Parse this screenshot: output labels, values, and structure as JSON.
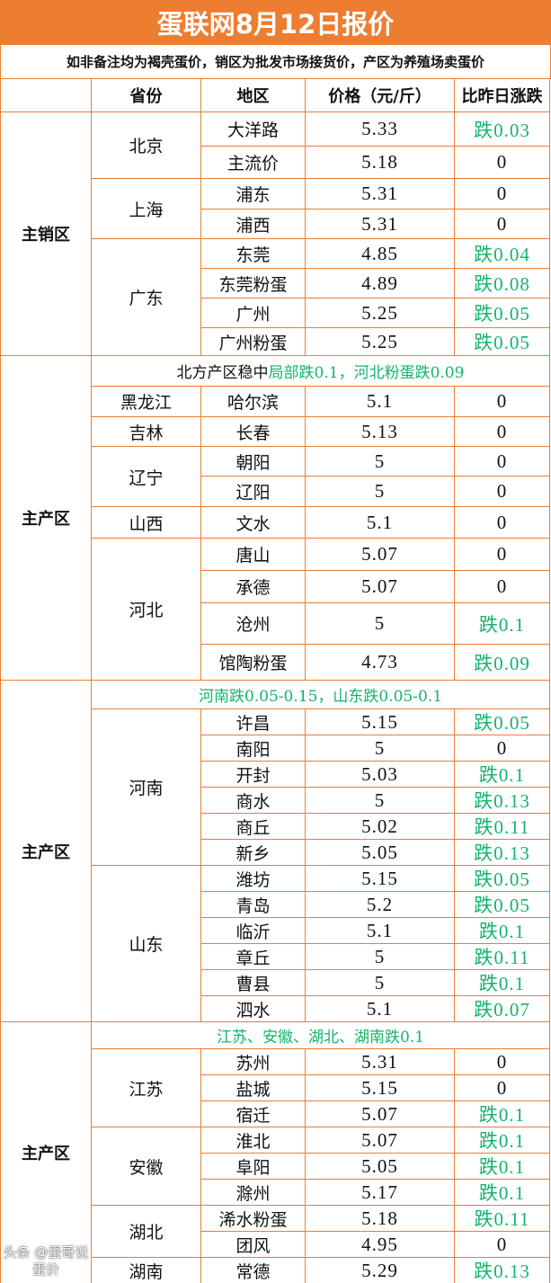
{
  "title": "蛋联网8月12日报价",
  "subtitle": "如非备注均为褐壳蛋价，销区为批发市场接货价，产区为养殖场卖蛋价",
  "headers": {
    "region": "",
    "province": "省份",
    "district": "地区",
    "price": "价格（元/斤）",
    "change": "比昨日涨跌"
  },
  "colors": {
    "brand": "#ed7d31",
    "down": "#14b36b",
    "border": "#ed7d31"
  },
  "sections": [
    {
      "region": "主销区",
      "note": null,
      "provinces": [
        {
          "name": "北京",
          "rows": [
            {
              "district": "大洋路",
              "price": "5.33",
              "change": "跌0.03"
            },
            {
              "district": "主流价",
              "price": "5.18",
              "change": "0"
            }
          ]
        },
        {
          "name": "上海",
          "rows": [
            {
              "district": "浦东",
              "price": "5.31",
              "change": "0"
            },
            {
              "district": "浦西",
              "price": "5.31",
              "change": "0"
            }
          ]
        },
        {
          "name": "广东",
          "rows": [
            {
              "district": "东莞",
              "price": "4.85",
              "change": "跌0.04"
            },
            {
              "district": "东莞粉蛋",
              "price": "4.89",
              "change": "跌0.08"
            },
            {
              "district": "广州",
              "price": "5.25",
              "change": "跌0.05"
            },
            {
              "district": "广州粉蛋",
              "price": "5.25",
              "change": "跌0.05"
            }
          ]
        }
      ]
    },
    {
      "region": "主产区",
      "note": [
        {
          "text": "北方产区稳中",
          "green": false
        },
        {
          "text": "局部跌0.1，河北粉蛋跌0.09",
          "green": true
        }
      ],
      "provinces": [
        {
          "name": "黑龙江",
          "rows": [
            {
              "district": "哈尔滨",
              "price": "5.1",
              "change": "0"
            }
          ]
        },
        {
          "name": "吉林",
          "rows": [
            {
              "district": "长春",
              "price": "5.13",
              "change": "0"
            }
          ]
        },
        {
          "name": "辽宁",
          "rows": [
            {
              "district": "朝阳",
              "price": "5",
              "change": "0"
            },
            {
              "district": "辽阳",
              "price": "5",
              "change": "0"
            }
          ]
        },
        {
          "name": "山西",
          "rows": [
            {
              "district": "文水",
              "price": "5.1",
              "change": "0"
            }
          ]
        },
        {
          "name": "河北",
          "rows": [
            {
              "district": "唐山",
              "price": "5.07",
              "change": "0"
            },
            {
              "district": "承德",
              "price": "5.07",
              "change": "0"
            },
            {
              "district": "沧州",
              "price": "5",
              "change": "跌0.1"
            },
            {
              "district": "馆陶粉蛋",
              "price": "4.73",
              "change": "跌0.09"
            }
          ]
        }
      ]
    },
    {
      "region": "主产区",
      "note": [
        {
          "text": "河南跌0.05-0.15，山东跌0.05-0.1",
          "green": true
        }
      ],
      "provinces": [
        {
          "name": "河南",
          "rows": [
            {
              "district": "许昌",
              "price": "5.15",
              "change": "跌0.05"
            },
            {
              "district": "南阳",
              "price": "5",
              "change": "0"
            },
            {
              "district": "开封",
              "price": "5.03",
              "change": "跌0.1"
            },
            {
              "district": "商水",
              "price": "5",
              "change": "跌0.13"
            },
            {
              "district": "商丘",
              "price": "5.02",
              "change": "跌0.11"
            },
            {
              "district": "新乡",
              "price": "5.05",
              "change": "跌0.13"
            }
          ]
        },
        {
          "name": "山东",
          "rows": [
            {
              "district": "潍坊",
              "price": "5.15",
              "change": "跌0.05"
            },
            {
              "district": "青岛",
              "price": "5.2",
              "change": "跌0.05"
            },
            {
              "district": "临沂",
              "price": "5.1",
              "change": "跌0.1"
            },
            {
              "district": "章丘",
              "price": "5",
              "change": "跌0.11"
            },
            {
              "district": "曹县",
              "price": "5",
              "change": "跌0.1"
            },
            {
              "district": "泗水",
              "price": "5.1",
              "change": "跌0.07"
            }
          ]
        }
      ]
    },
    {
      "region": "主产区",
      "note": [
        {
          "text": "江苏、安徽、湖北、湖南跌0.1",
          "green": true
        }
      ],
      "provinces": [
        {
          "name": "江苏",
          "rows": [
            {
              "district": "苏州",
              "price": "5.31",
              "change": "0"
            },
            {
              "district": "盐城",
              "price": "5.15",
              "change": "0"
            },
            {
              "district": "宿迁",
              "price": "5.07",
              "change": "跌0.1"
            }
          ]
        },
        {
          "name": "安徽",
          "rows": [
            {
              "district": "淮北",
              "price": "5.07",
              "change": "跌0.1"
            },
            {
              "district": "阜阳",
              "price": "5.05",
              "change": "跌0.1"
            },
            {
              "district": "滁州",
              "price": "5.17",
              "change": "跌0.1"
            }
          ]
        },
        {
          "name": "湖北",
          "rows": [
            {
              "district": "浠水粉蛋",
              "price": "5.18",
              "change": "跌0.11"
            },
            {
              "district": "团风",
              "price": "4.95",
              "change": "0"
            }
          ]
        },
        {
          "name": "湖南",
          "rows": [
            {
              "district": "常德",
              "price": "5.29",
              "change": "跌0.13"
            }
          ]
        }
      ]
    }
  ],
  "watermark": "头条 @蛋哥说蛋价"
}
